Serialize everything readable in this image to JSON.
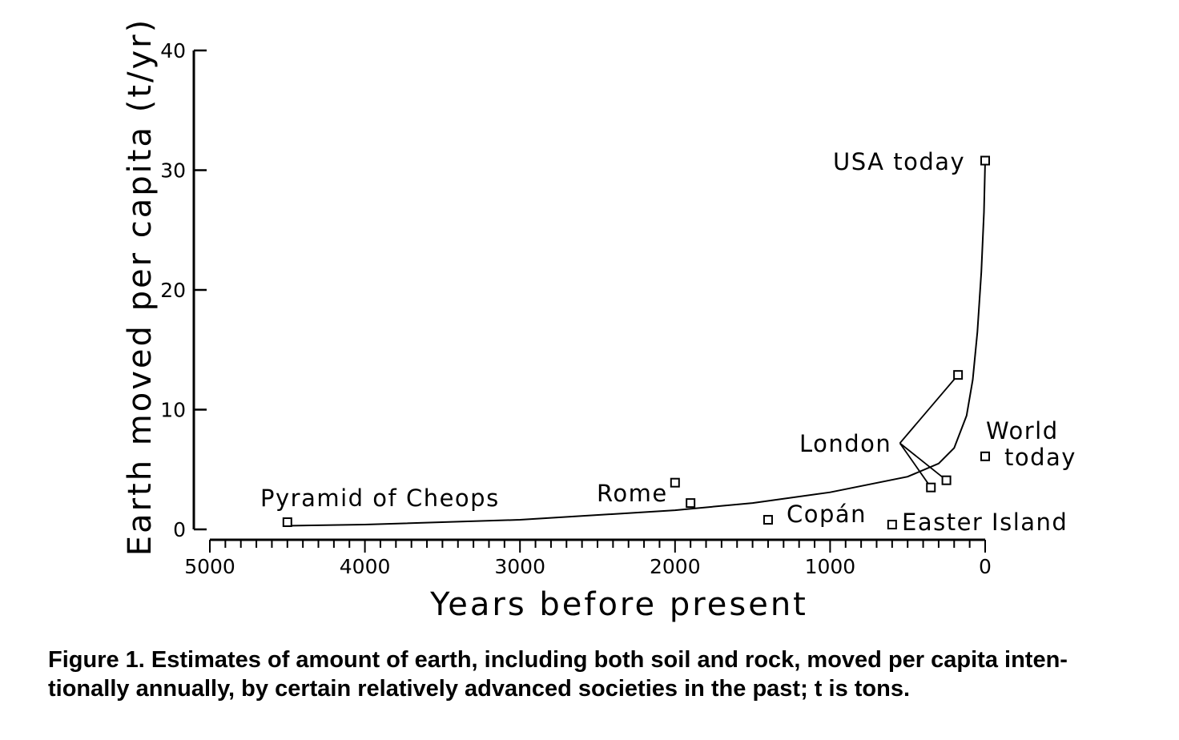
{
  "chart_data": {
    "type": "scatter",
    "title": "",
    "xlabel": "Years before present",
    "ylabel": "Earth moved per capita (t/yr)",
    "xlim": [
      5000,
      0
    ],
    "ylim": [
      0,
      40
    ],
    "x_ticks": [
      5000,
      4000,
      3000,
      2000,
      1000,
      0
    ],
    "y_ticks": [
      0,
      10,
      20,
      30,
      40
    ],
    "grid": false,
    "points": [
      {
        "x": 4500,
        "y": 0.6
      },
      {
        "x": 2000,
        "y": 3.9
      },
      {
        "x": 1900,
        "y": 2.2
      },
      {
        "x": 1400,
        "y": 0.8
      },
      {
        "x": 600,
        "y": 0.4
      },
      {
        "x": 350,
        "y": 3.5
      },
      {
        "x": 250,
        "y": 4.1
      },
      {
        "x": 175,
        "y": 12.9
      },
      {
        "x": 0,
        "y": 30.8
      },
      {
        "x": 0,
        "y": 6.1
      }
    ],
    "trend_curve": [
      {
        "x": 4500,
        "y": 0.3
      },
      {
        "x": 4000,
        "y": 0.4
      },
      {
        "x": 3000,
        "y": 0.8
      },
      {
        "x": 2000,
        "y": 1.6
      },
      {
        "x": 1500,
        "y": 2.2
      },
      {
        "x": 1000,
        "y": 3.1
      },
      {
        "x": 500,
        "y": 4.4
      },
      {
        "x": 300,
        "y": 5.5
      },
      {
        "x": 200,
        "y": 6.8
      },
      {
        "x": 120,
        "y": 9.5
      },
      {
        "x": 80,
        "y": 12.5
      },
      {
        "x": 50,
        "y": 16.5
      },
      {
        "x": 25,
        "y": 21.5
      },
      {
        "x": 8,
        "y": 26.5
      },
      {
        "x": 0,
        "y": 30.8
      }
    ],
    "annotations": [
      {
        "text": "Pyramid of Cheops",
        "x": 4500,
        "y": 0.6
      },
      {
        "text": "Rome",
        "x": 2000,
        "y": 3.9
      },
      {
        "text": "Copán",
        "x": 1400,
        "y": 0.8
      },
      {
        "text": "Easter Island",
        "x": 600,
        "y": 0.4
      },
      {
        "text": "London",
        "x": 550,
        "y": 7.2,
        "pointer_to": [
          [
            175,
            12.9
          ],
          [
            350,
            3.5
          ],
          [
            250,
            4.1
          ]
        ]
      },
      {
        "text": "World today",
        "lines": [
          "World",
          "today"
        ],
        "x": 0,
        "y": 6.1
      },
      {
        "text": "USA today",
        "x": 0,
        "y": 30.8
      }
    ]
  },
  "caption": {
    "line1": "Figure 1. Estimates of amount of earth, including both soil and rock, moved per capita inten-",
    "line2": "tionally annually, by certain relatively advanced societies in the past; t is tons."
  }
}
